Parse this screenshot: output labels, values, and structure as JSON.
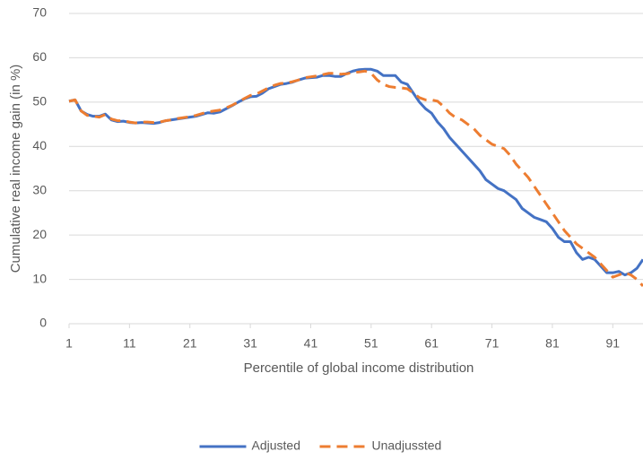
{
  "chart_data": {
    "type": "line",
    "y_label": "Cumulative real income gain (in %)",
    "x_label": "Percentile of global income distribution",
    "x": [
      1,
      2,
      3,
      4,
      5,
      6,
      7,
      8,
      9,
      10,
      11,
      12,
      13,
      14,
      15,
      16,
      17,
      18,
      19,
      20,
      21,
      22,
      23,
      24,
      25,
      26,
      27,
      28,
      29,
      30,
      31,
      32,
      33,
      34,
      35,
      36,
      37,
      38,
      39,
      40,
      41,
      42,
      43,
      44,
      45,
      46,
      47,
      48,
      49,
      50,
      51,
      52,
      53,
      54,
      55,
      56,
      57,
      58,
      59,
      60,
      61,
      62,
      63,
      64,
      65,
      66,
      67,
      68,
      69,
      70,
      71,
      72,
      73,
      74,
      75,
      76,
      77,
      78,
      79,
      80,
      81,
      82,
      83,
      84,
      85,
      86,
      87,
      88,
      89,
      90,
      91,
      92,
      93,
      94,
      95,
      96
    ],
    "series": [
      {
        "name": "Adjusted",
        "color": "#4472c4",
        "dashed": false,
        "values": [
          50.2,
          50.5,
          48,
          47.2,
          46.8,
          46.8,
          47.3,
          46,
          45.6,
          45.7,
          45.4,
          45.3,
          45.4,
          45.3,
          45.2,
          45.4,
          45.8,
          46,
          46.2,
          46.4,
          46.6,
          46.8,
          47.2,
          47.6,
          47.5,
          47.8,
          48.5,
          49.2,
          50,
          50.7,
          51.2,
          51.3,
          52,
          53,
          53.5,
          54,
          54.2,
          54.5,
          55,
          55.4,
          55.5,
          55.6,
          56,
          56,
          55.8,
          55.8,
          56.5,
          57,
          57.3,
          57.4,
          57.4,
          57,
          56,
          56,
          56,
          54.5,
          54,
          52,
          50,
          48.5,
          47.5,
          45.5,
          44,
          42,
          40.5,
          39,
          37.5,
          36,
          34.5,
          32.5,
          31.5,
          30.5,
          30,
          29,
          28,
          26,
          25,
          24,
          23.5,
          23,
          21.5,
          19.5,
          18.5,
          18.5,
          16,
          14.5,
          15,
          14.5,
          13,
          11.5,
          11.5,
          11.8,
          11,
          11.5,
          12.5,
          14.5
        ]
      },
      {
        "name": "Unadjussted",
        "color": "#ed7d31",
        "dashed": true,
        "values": [
          50.2,
          50.5,
          48,
          47,
          46.8,
          46.6,
          47.2,
          46.2,
          45.8,
          45.8,
          45.5,
          45.3,
          45.5,
          45.5,
          45.4,
          45.5,
          45.8,
          46,
          46.3,
          46.5,
          46.7,
          47,
          47.4,
          47.8,
          48,
          48.2,
          48.7,
          49.3,
          50,
          50.8,
          51.5,
          51.8,
          52.5,
          53.2,
          53.8,
          54.2,
          54.3,
          54.6,
          55,
          55.5,
          55.7,
          55.9,
          56.2,
          56.5,
          56.5,
          56.3,
          56.4,
          56.7,
          56.8,
          57,
          56.5,
          55,
          54,
          53.5,
          53.3,
          53.2,
          53,
          52,
          51,
          50.5,
          50.5,
          50.2,
          49,
          47.5,
          46.5,
          46,
          45,
          44,
          42.5,
          41.5,
          40.5,
          40,
          39.5,
          38,
          36,
          34.5,
          33,
          31,
          29,
          27,
          25,
          23,
          21,
          19.5,
          18,
          17,
          16,
          15,
          13.5,
          12,
          10.5,
          11,
          11.5,
          11,
          10,
          8.5
        ]
      }
    ],
    "xlim": [
      1,
      96
    ],
    "xticks": [
      1,
      11,
      21,
      31,
      41,
      51,
      61,
      71,
      81,
      91
    ],
    "ylim": [
      0,
      70
    ],
    "yticks": [
      0,
      10,
      20,
      30,
      40,
      50,
      60,
      70
    ],
    "grid": true,
    "legend": "bottom"
  }
}
